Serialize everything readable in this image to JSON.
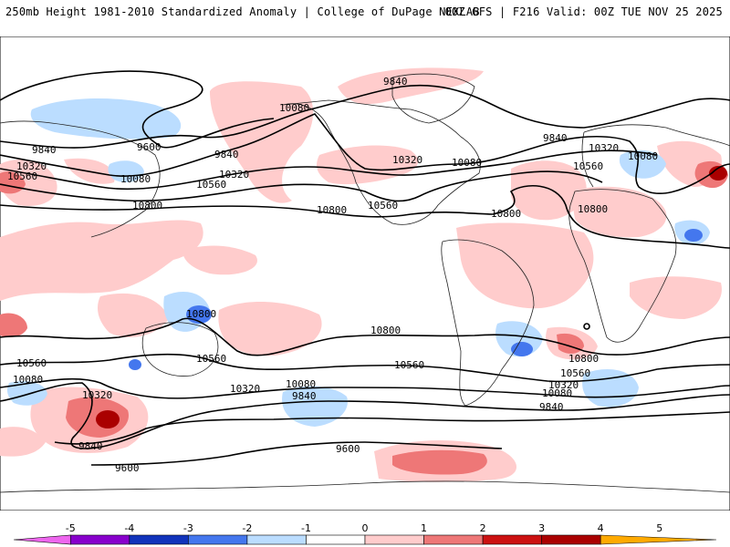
{
  "header": {
    "left": "250mb Height 1981-2010 Standardized Anomaly | College of DuPage NEXLAB",
    "right": "00Z GFS | F216 Valid: 00Z TUE NOV 25 2025"
  },
  "colors": {
    "neg5": "#ee66ee",
    "neg4": "#8800cc",
    "neg3": "#1133bb",
    "neg2": "#4477ee",
    "neg1": "#bbddff",
    "zero": "#ffffff",
    "pos1": "#ffcccc",
    "pos2": "#ee7777",
    "pos3": "#cc1111",
    "pos4": "#aa0000",
    "pos5": "#ffaa00",
    "contour": "#000000",
    "coast": "#222222"
  },
  "colorbar": {
    "ticks": [
      "-5",
      "-4",
      "-3",
      "-2",
      "-1",
      "0",
      "1",
      "2",
      "3",
      "4",
      "5"
    ]
  },
  "contour_labels": [
    {
      "text": "9840",
      "role": "n-pacific-a"
    },
    {
      "text": "9600",
      "role": "n-pacific-b"
    },
    {
      "text": "10320",
      "role": "asia-w"
    },
    {
      "text": "10560",
      "role": "asia-w2"
    },
    {
      "text": "10080",
      "role": "pacific-c"
    },
    {
      "text": "9840",
      "role": "pacific-d"
    },
    {
      "text": "10320",
      "role": "pacific-e"
    },
    {
      "text": "10560",
      "role": "pacific-f"
    },
    {
      "text": "10800",
      "role": "pacific-g"
    },
    {
      "text": "10080",
      "role": "alaska"
    },
    {
      "text": "9840",
      "role": "arctic"
    },
    {
      "text": "10800",
      "role": "c-pacific"
    },
    {
      "text": "10320",
      "role": "us-a"
    },
    {
      "text": "10080",
      "role": "us-b"
    },
    {
      "text": "10560",
      "role": "us-c"
    },
    {
      "text": "10800",
      "role": "atlantic"
    },
    {
      "text": "9840",
      "role": "greenland"
    },
    {
      "text": "10320",
      "role": "europe-a"
    },
    {
      "text": "10560",
      "role": "europe-b"
    },
    {
      "text": "10080",
      "role": "europe-c"
    },
    {
      "text": "10800",
      "role": "africa"
    },
    {
      "text": "10800",
      "role": "australia"
    },
    {
      "text": "10800",
      "role": "s-pacific"
    },
    {
      "text": "10560",
      "role": "sw-pacific-a"
    },
    {
      "text": "10320",
      "role": "sw-pacific-b"
    },
    {
      "text": "10080",
      "role": "sw-pacific-c"
    },
    {
      "text": "9840",
      "role": "sw-pacific-d"
    },
    {
      "text": "10560",
      "role": "s-ocean-w"
    },
    {
      "text": "10080",
      "role": "s-ocean-w2"
    },
    {
      "text": "10320",
      "role": "s-ocean-w3"
    },
    {
      "text": "9840",
      "role": "s-ocean-w4"
    },
    {
      "text": "9600",
      "role": "s-ocean-w5"
    },
    {
      "text": "10560",
      "role": "s-pacific-b"
    },
    {
      "text": "9600",
      "role": "s-pacific-c"
    },
    {
      "text": "10800",
      "role": "s-atlantic-a"
    },
    {
      "text": "10560",
      "role": "s-atlantic-b"
    },
    {
      "text": "10320",
      "role": "s-atlantic-c"
    },
    {
      "text": "10080",
      "role": "s-atlantic-d"
    },
    {
      "text": "9840",
      "role": "s-atlantic-e"
    }
  ]
}
